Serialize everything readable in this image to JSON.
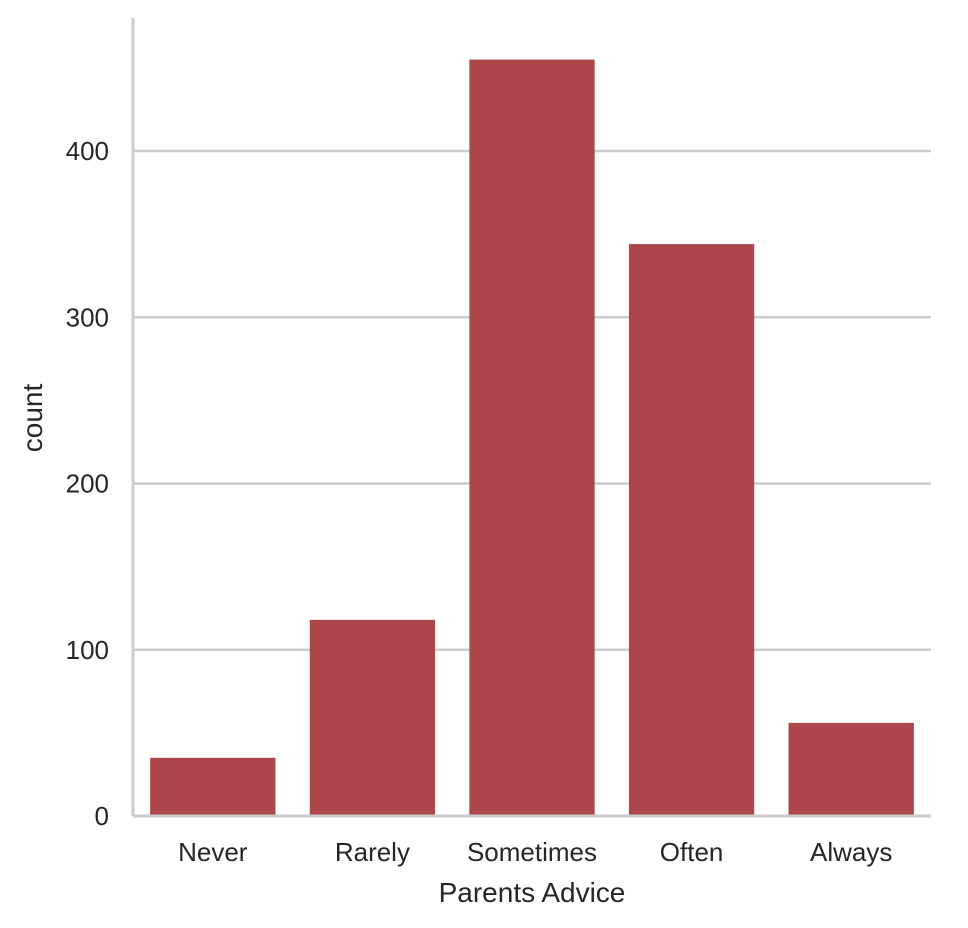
{
  "chart_data": {
    "type": "bar",
    "categories": [
      "Never",
      "Rarely",
      "Sometimes",
      "Often",
      "Always"
    ],
    "values": [
      35,
      118,
      455,
      344,
      56
    ],
    "title": "",
    "xlabel": "Parents Advice",
    "ylabel": "count",
    "ylim": [
      0,
      480
    ],
    "yticks": [
      0,
      100,
      200,
      300,
      400
    ],
    "ytick_labels": [
      "0",
      "100",
      "200",
      "300",
      "400"
    ],
    "grid": "horizontal",
    "bar_color": "#ad464a",
    "grid_color": "#cccccc",
    "text_color": "#262626"
  }
}
